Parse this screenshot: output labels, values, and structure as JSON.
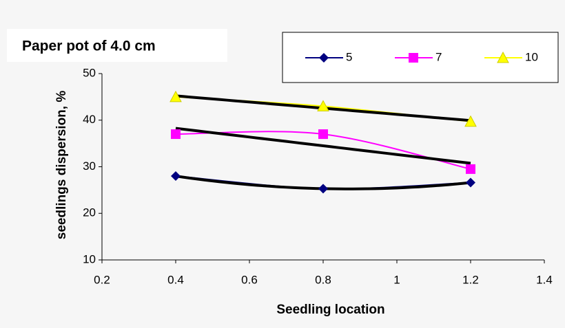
{
  "chart_data": {
    "type": "line",
    "title": "Paper pot of 4.0 cm",
    "x_label": "Seedling location",
    "y_label": "seedlings dispersion, %",
    "x": [
      0.4,
      0.8,
      1.2
    ],
    "series": [
      {
        "name": "5",
        "color": "#000080",
        "marker": "diamond",
        "trendline": "polynomial",
        "values": [
          28,
          25.3,
          26.6
        ]
      },
      {
        "name": "7",
        "color": "#ff00ff",
        "marker": "square",
        "trendline": "linear",
        "values": [
          37,
          37,
          29.5
        ]
      },
      {
        "name": "10",
        "color": "#ffff00",
        "marker": "triangle",
        "trendline": "linear",
        "values": [
          45,
          43,
          39.7
        ]
      }
    ],
    "xlim": [
      0.2,
      1.4
    ],
    "xticks": [
      0.2,
      0.4,
      0.6,
      0.8,
      1,
      1.2,
      1.4
    ],
    "ylim": [
      10,
      50
    ],
    "yticks": [
      10,
      20,
      30,
      40,
      50
    ],
    "grid": false,
    "legend": "top-right"
  }
}
